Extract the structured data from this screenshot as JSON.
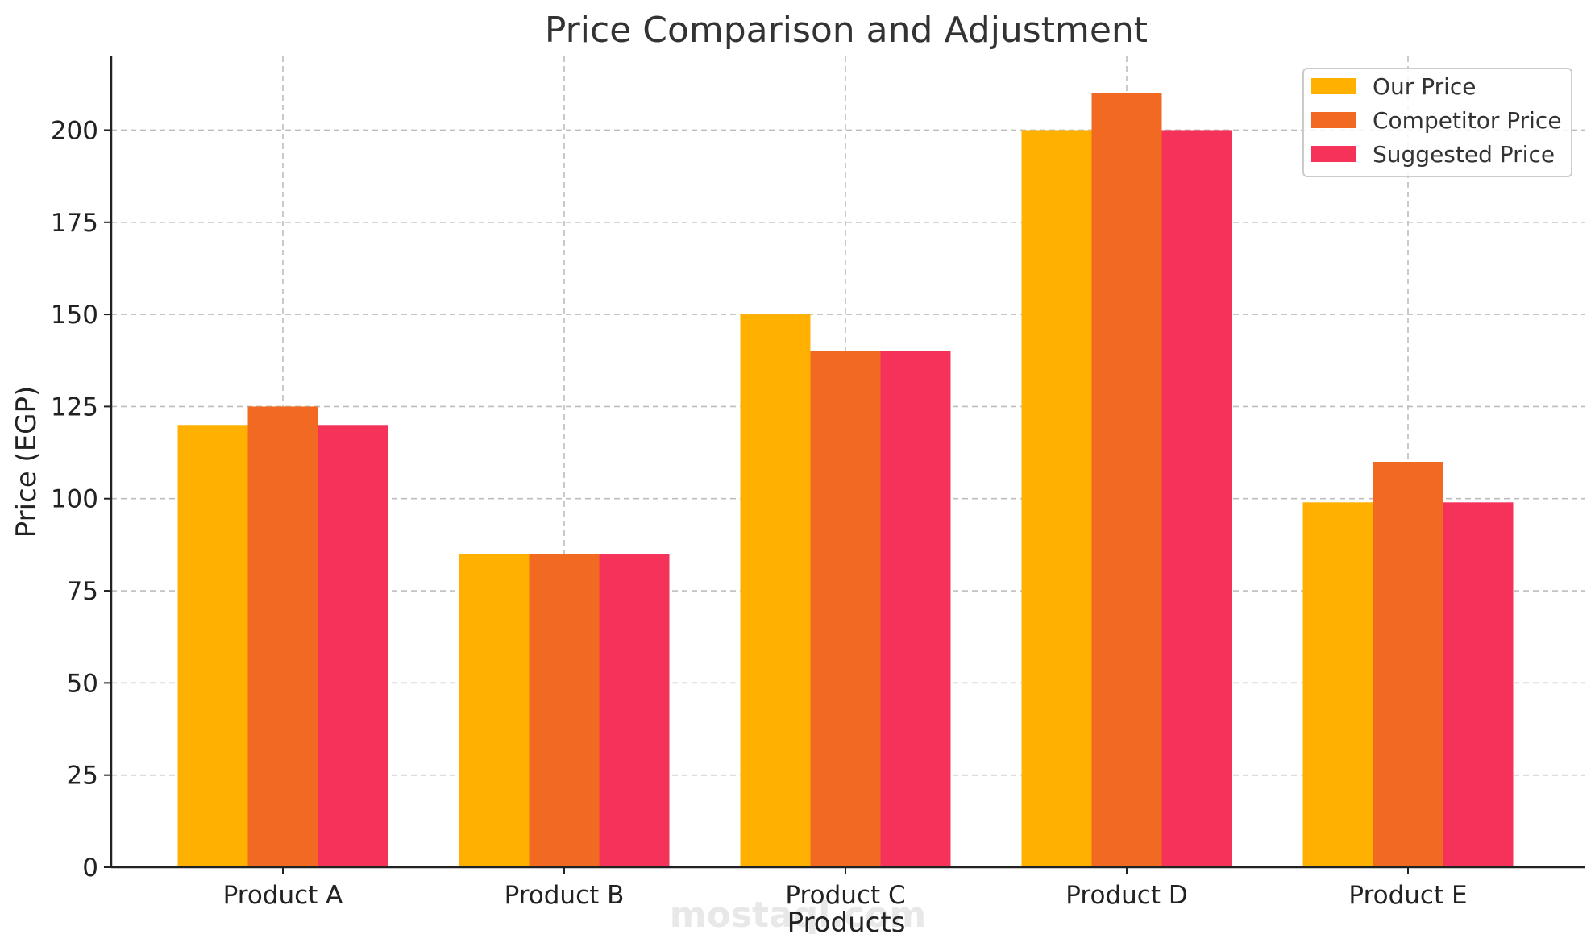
{
  "chart_data": {
    "type": "bar",
    "title": "Price Comparison and Adjustment",
    "xlabel": "Products",
    "ylabel": "Price (EGP)",
    "categories": [
      "Product A",
      "Product B",
      "Product C",
      "Product D",
      "Product E"
    ],
    "series": [
      {
        "name": "Our Price",
        "color": "#FFB000",
        "values": [
          120,
          85,
          150,
          200,
          99
        ]
      },
      {
        "name": "Competitor Price",
        "color": "#F26A21",
        "values": [
          125,
          85,
          140,
          210,
          110
        ]
      },
      {
        "name": "Suggested Price",
        "color": "#F5325A",
        "values": [
          120,
          85,
          140,
          200,
          99
        ]
      }
    ],
    "ylim": [
      0,
      220
    ],
    "yticks": [
      0,
      25,
      50,
      75,
      100,
      125,
      150,
      175,
      200
    ],
    "grid": true,
    "legend_position": "top-right"
  },
  "watermark": {
    "text": "mostaql.com"
  }
}
